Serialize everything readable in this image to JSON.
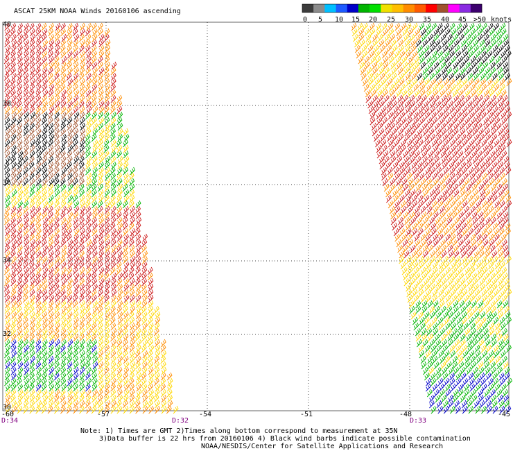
{
  "title": "ASCAT 25KM NOAA Winds 20160106 ascending",
  "legend": {
    "labels": [
      "0",
      "5",
      "10",
      "15",
      "20",
      "25",
      "30",
      "35",
      "40",
      "45",
      ">50"
    ],
    "unit": "knots",
    "colors": [
      "#3c3c3c",
      "#8c8c8c",
      "#00bfff",
      "#1e5aff",
      "#0000c8",
      "#00b400",
      "#00e000",
      "#f0e000",
      "#ffbe00",
      "#ff8c00",
      "#ff5a00",
      "#ff0000",
      "#a0522d",
      "#ff00ff",
      "#8a2be2",
      "#3c006e"
    ]
  },
  "axes": {
    "x_ticks": [
      "-60",
      "-57",
      "-54",
      "-51",
      "-48",
      "-45"
    ],
    "y_ticks": [
      "40",
      "38",
      "36",
      "34",
      "32",
      "30"
    ]
  },
  "pass_times": [
    "D:34",
    "D:32",
    "D:33"
  ],
  "notes": [
    "Note: 1) Times are GMT 2)Times along bottom correspond to measurement at 35N",
    "3)Data buffer is 22 hrs from 20160106 4) Black wind barbs indicate possible contamination",
    "NOAA/NESDIS/Center for Satellite Applications and Research"
  ],
  "wind_colors": {
    "lt15": "#0000c8",
    "15-20": "#00b400",
    "20-25": "#ffd700",
    "25-30": "#ff8c00",
    "30-35": "#cc1a1a",
    "35-40": "#a0522d",
    "contaminated": "#000000",
    "gt45": "#ff00ff"
  }
}
